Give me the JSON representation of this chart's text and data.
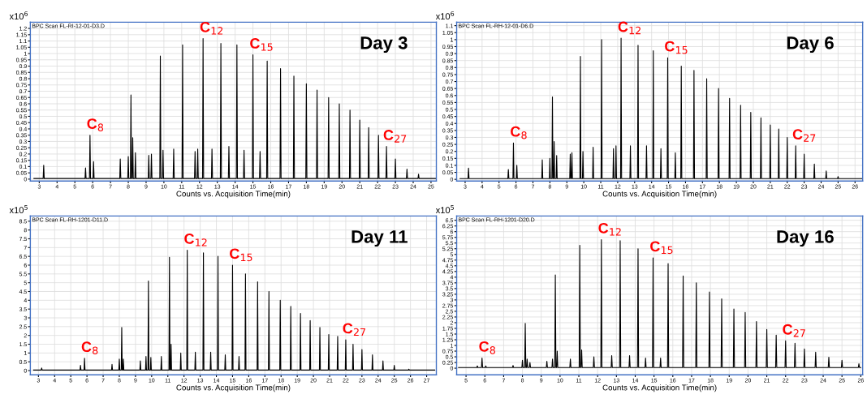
{
  "chart_data": [
    {
      "type": "line",
      "title": "Day 3",
      "subtitle": "BPC Scan FL-RI-12-01-D3.D",
      "xlabel": "Counts vs. Acquisition Time(min)",
      "ylabel": "x10$^{6}$",
      "grid": true,
      "xlim": [
        2.5,
        25.3
      ],
      "xticks": [
        3,
        4,
        5,
        6,
        7,
        8,
        9,
        10,
        11,
        12,
        13,
        14,
        15,
        16,
        17,
        18,
        19,
        20,
        21,
        22,
        23,
        24,
        25
      ],
      "ylim": [
        -0.015,
        1.25
      ],
      "yticks": [
        0,
        0.05,
        0.1,
        0.15,
        0.2,
        0.25,
        0.3,
        0.35,
        0.4,
        0.45,
        0.5,
        0.55,
        0.6,
        0.65,
        0.7,
        0.75,
        0.8,
        0.85,
        0.9,
        0.95,
        1,
        1.05,
        1.1,
        1.15,
        1.2
      ],
      "annotations": [
        {
          "text": "C$_{8}$",
          "x": 5.85,
          "y": 0.35
        },
        {
          "text": "C$_{12}$",
          "x": 12.2,
          "y": 1.12
        },
        {
          "text": "C$_{15}$",
          "x": 15.0,
          "y": 0.99
        },
        {
          "text": "C$_{27}$",
          "x": 22.5,
          "y": 0.26
        }
      ],
      "series": [
        {
          "color": "#000000",
          "x": [
            2.7,
            3.22,
            3.25,
            3.28,
            5.57,
            5.6,
            5.63,
            5.82,
            5.85,
            5.88,
            6.02,
            6.05,
            6.08,
            7.52,
            7.55,
            7.58,
            7.97,
            8.0,
            8.03,
            8.12,
            8.15,
            8.18,
            8.22,
            8.25,
            8.28,
            8.37,
            8.4,
            8.43,
            9.12,
            9.15,
            9.18,
            9.27,
            9.3,
            9.33,
            9.77,
            9.8,
            9.83,
            9.92,
            9.95,
            9.98,
            10.52,
            10.55,
            10.58,
            11.02,
            11.05,
            11.08,
            11.72,
            11.75,
            11.78,
            11.87,
            11.9,
            11.93,
            12.17,
            12.2,
            12.23,
            12.67,
            12.7,
            12.73,
            13.17,
            13.2,
            13.23,
            13.62,
            13.65,
            13.68,
            14.07,
            14.1,
            14.13,
            14.47,
            14.5,
            14.53,
            14.97,
            15.0,
            15.03,
            15.37,
            15.4,
            15.43,
            15.77,
            15.8,
            15.83,
            16.52,
            16.55,
            16.58,
            17.27,
            17.3,
            17.33,
            17.97,
            18.0,
            18.03,
            18.57,
            18.6,
            18.63,
            19.22,
            19.25,
            19.28,
            19.82,
            19.85,
            19.88,
            20.42,
            20.45,
            20.48,
            20.97,
            21.0,
            21.03,
            21.47,
            21.5,
            21.53,
            22.02,
            22.05,
            22.08,
            22.47,
            22.5,
            22.53,
            22.97,
            23.0,
            23.03,
            23.62,
            23.65,
            23.68,
            24.27,
            24.3,
            24.33,
            25.3
          ],
          "values": [
            0.005,
            0.005,
            0.11,
            0.005,
            0.005,
            0.09,
            0.005,
            0.005,
            0.35,
            0.005,
            0.005,
            0.14,
            0.005,
            0.005,
            0.16,
            0.005,
            0.005,
            0.18,
            0.005,
            0.005,
            0.67,
            0.005,
            0.005,
            0.33,
            0.005,
            0.005,
            0.21,
            0.005,
            0.005,
            0.19,
            0.005,
            0.005,
            0.2,
            0.005,
            0.005,
            0.98,
            0.005,
            0.005,
            0.23,
            0.005,
            0.005,
            0.24,
            0.005,
            0.005,
            1.07,
            0.005,
            0.005,
            0.22,
            0.005,
            0.005,
            0.24,
            0.005,
            0.005,
            1.12,
            0.005,
            0.005,
            0.24,
            0.005,
            0.005,
            1.08,
            0.005,
            0.005,
            0.26,
            0.005,
            0.005,
            1.07,
            0.005,
            0.005,
            0.23,
            0.005,
            0.005,
            0.99,
            0.005,
            0.005,
            0.22,
            0.005,
            0.005,
            0.94,
            0.005,
            0.005,
            0.88,
            0.005,
            0.005,
            0.82,
            0.005,
            0.005,
            0.76,
            0.005,
            0.005,
            0.71,
            0.005,
            0.005,
            0.65,
            0.005,
            0.005,
            0.6,
            0.005,
            0.005,
            0.55,
            0.005,
            0.005,
            0.47,
            0.005,
            0.005,
            0.41,
            0.005,
            0.005,
            0.35,
            0.005,
            0.005,
            0.26,
            0.005,
            0.005,
            0.16,
            0.005,
            0.005,
            0.08,
            0.005,
            0.005,
            0.04,
            0.005,
            0.005
          ]
        }
      ]
    },
    {
      "type": "line",
      "title": "Day 6",
      "subtitle": "BPC Scan FL-RH-12-01-D6.D",
      "xlabel": "Counts vs. Acquisition Time(min)",
      "ylabel": "x10$^{6}$",
      "grid": true,
      "xlim": [
        2.5,
        26.45
      ],
      "xticks": [
        3,
        4,
        5,
        6,
        7,
        8,
        9,
        10,
        11,
        12,
        13,
        14,
        15,
        16,
        17,
        18,
        19,
        20,
        21,
        22,
        23,
        24,
        25,
        26
      ],
      "ylim": [
        -0.012,
        1.125
      ],
      "yticks": [
        0,
        0.05,
        0.1,
        0.15,
        0.2,
        0.25,
        0.3,
        0.35,
        0.4,
        0.45,
        0.5,
        0.55,
        0.6,
        0.65,
        0.7,
        0.75,
        0.8,
        0.85,
        0.9,
        0.95,
        1,
        1.05,
        1.1
      ],
      "annotations": [
        {
          "text": "C$_{8}$",
          "x": 5.85,
          "y": 0.26
        },
        {
          "text": "C$_{12}$",
          "x": 12.2,
          "y": 1.01
        },
        {
          "text": "C$_{15}$",
          "x": 14.95,
          "y": 0.87
        },
        {
          "text": "C$_{27}$",
          "x": 22.5,
          "y": 0.24
        }
      ],
      "series": [
        {
          "color": "#000000",
          "x": [
            2.7,
            3.17,
            3.2,
            3.23,
            5.52,
            5.55,
            5.58,
            5.82,
            5.85,
            5.88,
            6.02,
            6.05,
            6.08,
            7.52,
            7.55,
            7.58,
            7.97,
            8.0,
            8.03,
            8.12,
            8.15,
            8.18,
            8.22,
            8.25,
            8.28,
            8.37,
            8.4,
            8.43,
            9.17,
            9.2,
            9.23,
            9.27,
            9.3,
            9.33,
            9.77,
            9.8,
            9.83,
            9.92,
            9.95,
            9.98,
            10.52,
            10.55,
            10.58,
            11.02,
            11.05,
            11.08,
            11.72,
            11.75,
            11.78,
            11.87,
            11.9,
            11.93,
            12.17,
            12.2,
            12.23,
            12.72,
            12.75,
            12.78,
            13.17,
            13.2,
            13.23,
            13.67,
            13.7,
            13.73,
            14.07,
            14.1,
            14.13,
            14.52,
            14.55,
            14.58,
            14.92,
            14.95,
            14.98,
            15.37,
            15.4,
            15.43,
            15.72,
            15.75,
            15.78,
            16.47,
            16.5,
            16.53,
            17.22,
            17.25,
            17.28,
            17.92,
            17.95,
            17.98,
            18.57,
            18.6,
            18.63,
            19.22,
            19.25,
            19.28,
            19.82,
            19.85,
            19.88,
            20.42,
            20.45,
            20.48,
            20.97,
            21.0,
            21.03,
            21.47,
            21.5,
            21.53,
            21.97,
            22.0,
            22.03,
            22.47,
            22.5,
            22.53,
            22.97,
            23.0,
            23.03,
            23.57,
            23.6,
            23.63,
            24.27,
            24.3,
            24.33,
            24.97,
            25.0,
            25.03,
            26.4
          ],
          "values": [
            0.005,
            0.005,
            0.08,
            0.005,
            0.005,
            0.07,
            0.005,
            0.005,
            0.26,
            0.005,
            0.005,
            0.1,
            0.005,
            0.005,
            0.14,
            0.005,
            0.005,
            0.15,
            0.005,
            0.005,
            0.59,
            0.005,
            0.005,
            0.27,
            0.005,
            0.005,
            0.17,
            0.005,
            0.005,
            0.18,
            0.005,
            0.005,
            0.19,
            0.005,
            0.005,
            0.88,
            0.005,
            0.005,
            0.2,
            0.005,
            0.005,
            0.23,
            0.005,
            0.005,
            1.0,
            0.005,
            0.005,
            0.22,
            0.005,
            0.005,
            0.24,
            0.005,
            0.005,
            1.01,
            0.005,
            0.005,
            0.24,
            0.005,
            0.005,
            0.96,
            0.005,
            0.005,
            0.24,
            0.005,
            0.005,
            0.92,
            0.005,
            0.005,
            0.22,
            0.005,
            0.005,
            0.87,
            0.005,
            0.005,
            0.19,
            0.005,
            0.005,
            0.81,
            0.005,
            0.005,
            0.78,
            0.005,
            0.005,
            0.72,
            0.005,
            0.005,
            0.65,
            0.005,
            0.005,
            0.58,
            0.005,
            0.005,
            0.53,
            0.005,
            0.005,
            0.48,
            0.005,
            0.005,
            0.44,
            0.005,
            0.005,
            0.39,
            0.005,
            0.005,
            0.36,
            0.005,
            0.005,
            0.3,
            0.005,
            0.005,
            0.24,
            0.005,
            0.005,
            0.18,
            0.005,
            0.005,
            0.11,
            0.005,
            0.005,
            0.06,
            0.005,
            0.005,
            0.02,
            0.005,
            0.005
          ]
        }
      ]
    },
    {
      "type": "line",
      "title": "Day 11",
      "subtitle": "BPC Scan FL-RH-1201-D11.D",
      "xlabel": "Counts vs. Acquisition Time(min)",
      "ylabel": "x10$^{5}$",
      "grid": true,
      "xlim": [
        2.5,
        27.6
      ],
      "xticks": [
        3,
        4,
        5,
        6,
        7,
        8,
        9,
        10,
        11,
        12,
        13,
        14,
        15,
        16,
        17,
        18,
        19,
        20,
        21,
        22,
        23,
        24,
        25,
        26,
        27
      ],
      "ylim": [
        -0.24,
        8.8
      ],
      "yticks": [
        0,
        0.5,
        1,
        1.5,
        2,
        2.5,
        3,
        3.5,
        4,
        4.5,
        5,
        5.5,
        6,
        6.5,
        7,
        7.5,
        8,
        8.5
      ],
      "annotations": [
        {
          "text": "C$_{8}$",
          "x": 5.85,
          "y": 0.7
        },
        {
          "text": "C$_{12}$",
          "x": 12.2,
          "y": 6.85
        },
        {
          "text": "C$_{15}$",
          "x": 15.0,
          "y": 6.0
        },
        {
          "text": "C$_{27}$",
          "x": 22.0,
          "y": 1.75
        }
      ],
      "series": [
        {
          "color": "#000000",
          "x": [
            2.7,
            3.17,
            3.2,
            3.23,
            5.57,
            5.6,
            5.63,
            5.82,
            5.85,
            5.88,
            7.52,
            7.55,
            7.58,
            7.97,
            8.0,
            8.03,
            8.12,
            8.15,
            8.18,
            8.22,
            8.25,
            8.28,
            9.27,
            9.3,
            9.33,
            9.62,
            9.65,
            9.68,
            9.77,
            9.8,
            9.83,
            9.92,
            9.95,
            9.98,
            10.57,
            10.6,
            10.63,
            11.07,
            11.1,
            11.13,
            11.17,
            11.2,
            11.23,
            11.77,
            11.8,
            11.83,
            12.17,
            12.2,
            12.23,
            12.67,
            12.7,
            12.73,
            13.17,
            13.2,
            13.23,
            13.62,
            13.65,
            13.68,
            14.07,
            14.1,
            14.13,
            14.52,
            14.55,
            14.58,
            14.97,
            15.0,
            15.03,
            15.37,
            15.4,
            15.43,
            15.77,
            15.8,
            15.83,
            16.52,
            16.55,
            16.58,
            17.22,
            17.25,
            17.28,
            17.92,
            17.95,
            17.98,
            18.57,
            18.6,
            18.63,
            19.17,
            19.2,
            19.23,
            19.77,
            19.8,
            19.83,
            20.37,
            20.4,
            20.43,
            20.92,
            20.95,
            20.98,
            21.47,
            21.5,
            21.53,
            21.97,
            22.0,
            22.03,
            22.42,
            22.45,
            22.48,
            22.97,
            23.0,
            23.03,
            23.62,
            23.65,
            23.68,
            24.27,
            24.3,
            24.33,
            24.97,
            25.0,
            25.03,
            25.87,
            25.9,
            25.93,
            27.5
          ],
          "values": [
            0.03,
            0.03,
            0.15,
            0.03,
            0.03,
            0.3,
            0.03,
            0.03,
            0.7,
            0.03,
            0.03,
            0.35,
            0.03,
            0.03,
            0.65,
            0.03,
            0.03,
            2.45,
            0.03,
            0.03,
            0.65,
            0.03,
            0.03,
            0.55,
            0.03,
            0.03,
            0.8,
            0.03,
            0.03,
            5.1,
            0.03,
            0.03,
            0.75,
            0.03,
            0.03,
            0.8,
            0.03,
            0.03,
            6.45,
            0.03,
            0.03,
            1.5,
            0.03,
            0.03,
            1.0,
            0.03,
            0.03,
            6.85,
            0.03,
            0.03,
            1.05,
            0.03,
            0.03,
            6.7,
            0.03,
            0.03,
            1.05,
            0.03,
            0.03,
            6.5,
            0.03,
            0.03,
            0.9,
            0.03,
            0.03,
            6.0,
            0.03,
            0.03,
            0.8,
            0.03,
            0.03,
            5.5,
            0.03,
            0.03,
            5.05,
            0.03,
            0.03,
            4.5,
            0.03,
            0.03,
            4.0,
            0.03,
            0.03,
            3.65,
            0.03,
            0.03,
            3.25,
            0.03,
            0.03,
            2.85,
            0.03,
            0.03,
            2.45,
            0.03,
            0.03,
            2.05,
            0.03,
            0.03,
            1.95,
            0.03,
            0.03,
            1.75,
            0.03,
            0.03,
            1.5,
            0.03,
            0.03,
            1.2,
            0.03,
            0.03,
            0.9,
            0.03,
            0.03,
            0.55,
            0.03,
            0.03,
            0.3,
            0.03,
            0.03,
            0.08,
            0.03,
            0.03
          ]
        }
      ]
    },
    {
      "type": "line",
      "title": "Day 16",
      "subtitle": "BPC Scan FL-RH-1201-D20.D",
      "xlabel": "Counts vs. Acquisition Time(min)",
      "ylabel": "x10$^{5}$",
      "grid": true,
      "xlim": [
        4.5,
        26.1
      ],
      "xticks": [
        5,
        6,
        7,
        8,
        9,
        10,
        11,
        12,
        13,
        14,
        15,
        16,
        17,
        18,
        19,
        20,
        21,
        22,
        23,
        24,
        25,
        26
      ],
      "ylim": [
        -0.29,
        6.69
      ],
      "yticks": [
        0,
        0.25,
        0.5,
        0.75,
        1,
        1.25,
        1.5,
        1.75,
        2,
        2.25,
        2.5,
        2.75,
        3,
        3.25,
        3.5,
        3.75,
        4,
        4.25,
        4.5,
        4.75,
        5,
        5.25,
        5.5,
        5.75,
        6,
        6.25,
        6.5
      ],
      "annotations": [
        {
          "text": "C$_{8}$",
          "x": 5.85,
          "y": 0.45
        },
        {
          "text": "C$_{12}$",
          "x": 12.2,
          "y": 5.65
        },
        {
          "text": "C$_{15}$",
          "x": 14.95,
          "y": 4.85
        },
        {
          "text": "C$_{27}$",
          "x": 22.0,
          "y": 1.2
        }
      ],
      "series": [
        {
          "color": "#000000",
          "x": [
            4.6,
            5.57,
            5.6,
            5.63,
            5.82,
            5.85,
            5.88,
            6.02,
            6.05,
            6.08,
            7.47,
            7.5,
            7.53,
            7.97,
            8.0,
            8.03,
            8.12,
            8.15,
            8.18,
            8.22,
            8.25,
            8.28,
            8.37,
            8.4,
            8.43,
            9.27,
            9.3,
            9.33,
            9.57,
            9.6,
            9.63,
            9.72,
            9.75,
            9.78,
            9.82,
            9.85,
            9.88,
            10.52,
            10.55,
            10.58,
            11.02,
            11.05,
            11.08,
            11.12,
            11.15,
            11.18,
            11.77,
            11.8,
            11.83,
            12.17,
            12.2,
            12.23,
            12.72,
            12.75,
            12.78,
            13.17,
            13.2,
            13.23,
            13.67,
            13.7,
            13.73,
            14.12,
            14.15,
            14.18,
            14.52,
            14.55,
            14.58,
            14.92,
            14.95,
            14.98,
            15.32,
            15.35,
            15.38,
            15.72,
            15.75,
            15.78,
            16.52,
            16.55,
            16.58,
            17.22,
            17.25,
            17.28,
            17.92,
            17.95,
            17.98,
            18.57,
            18.6,
            18.63,
            19.22,
            19.25,
            19.28,
            19.82,
            19.85,
            19.88,
            20.42,
            20.45,
            20.48,
            20.97,
            21.0,
            21.03,
            21.47,
            21.5,
            21.53,
            21.97,
            22.0,
            22.03,
            22.47,
            22.5,
            22.53,
            22.97,
            23.0,
            23.03,
            23.57,
            23.6,
            23.63,
            24.27,
            24.3,
            24.33,
            24.97,
            25.0,
            25.03,
            25.87,
            25.9,
            25.93,
            26.0
          ],
          "values": [
            0.03,
            0.03,
            0.1,
            0.03,
            0.03,
            0.45,
            0.03,
            0.03,
            0.1,
            0.03,
            0.03,
            0.12,
            0.03,
            0.03,
            0.35,
            0.03,
            0.03,
            1.97,
            0.03,
            0.03,
            0.4,
            0.03,
            0.03,
            0.25,
            0.03,
            0.03,
            0.3,
            0.03,
            0.03,
            0.4,
            0.03,
            0.03,
            4.1,
            0.03,
            0.03,
            0.75,
            0.03,
            0.03,
            0.4,
            0.03,
            0.03,
            5.4,
            0.03,
            0.03,
            0.8,
            0.03,
            0.03,
            0.5,
            0.03,
            0.03,
            5.65,
            0.03,
            0.03,
            0.55,
            0.03,
            0.03,
            5.6,
            0.03,
            0.03,
            0.55,
            0.03,
            0.03,
            5.25,
            0.03,
            0.03,
            0.45,
            0.03,
            0.03,
            4.85,
            0.03,
            0.03,
            0.45,
            0.03,
            0.03,
            4.6,
            0.03,
            0.03,
            4.05,
            0.03,
            0.03,
            3.75,
            0.03,
            0.03,
            3.35,
            0.03,
            0.03,
            3.05,
            0.03,
            0.03,
            2.6,
            0.03,
            0.03,
            2.45,
            0.03,
            0.03,
            2.05,
            0.03,
            0.03,
            1.7,
            0.03,
            0.03,
            1.45,
            0.03,
            0.03,
            1.2,
            0.03,
            0.03,
            1.1,
            0.03,
            0.03,
            0.85,
            0.03,
            0.03,
            0.7,
            0.03,
            0.03,
            0.48,
            0.03,
            0.03,
            0.35,
            0.03,
            0.03,
            0.2,
            0.03,
            0.03
          ]
        }
      ]
    }
  ]
}
